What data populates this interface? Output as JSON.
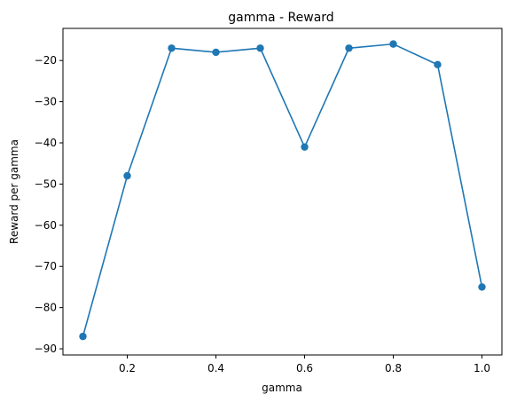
{
  "chart_data": {
    "type": "line",
    "title": "gamma - Reward",
    "xlabel": "gamma",
    "ylabel": "Reward per gamma",
    "x": [
      0.1,
      0.2,
      0.3,
      0.4,
      0.5,
      0.6,
      0.7,
      0.8,
      0.9,
      1.0
    ],
    "series": [
      {
        "values": [
          -87,
          -48,
          -17,
          -18,
          -17,
          -41,
          -17,
          -16,
          -21,
          -75
        ]
      }
    ],
    "xlim": [
      0.055,
      1.045
    ],
    "ylim": [
      -91.5,
      -12.2
    ],
    "xticks": [
      0.2,
      0.4,
      0.6,
      0.8,
      1.0
    ],
    "xtick_labels": [
      "0.2",
      "0.4",
      "0.6",
      "0.8",
      "1.0"
    ],
    "yticks": [
      -90,
      -80,
      -70,
      -60,
      -50,
      -40,
      -30,
      -20
    ],
    "ytick_labels": [
      "−90",
      "−80",
      "−70",
      "−60",
      "−50",
      "−40",
      "−30",
      "−20"
    ],
    "grid": false,
    "line_color": "#1f77b4",
    "marker": "circle"
  }
}
